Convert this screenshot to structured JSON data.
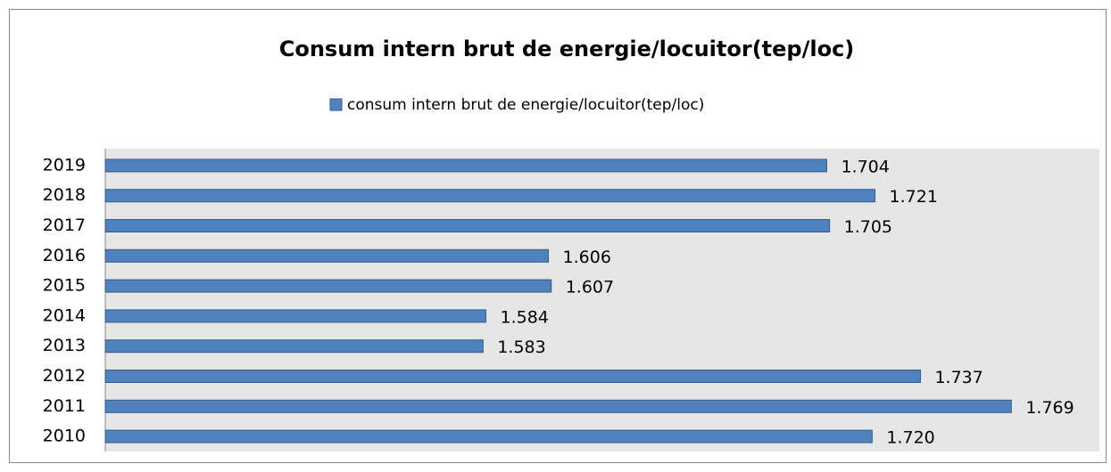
{
  "chart_data": {
    "type": "bar",
    "orientation": "horizontal",
    "title": "Consum intern brut de energie/locuitor(tep/loc)",
    "categories": [
      "2010",
      "2011",
      "2012",
      "2013",
      "2014",
      "2015",
      "2016",
      "2017",
      "2018",
      "2019"
    ],
    "series": [
      {
        "name": "consum intern brut de energie/locuitor(tep/loc)",
        "color": "#4f81bd",
        "values": [
          1.72,
          1.769,
          1.737,
          1.583,
          1.584,
          1.607,
          1.606,
          1.705,
          1.721,
          1.704
        ],
        "value_labels": [
          "1.720",
          "1.769",
          "1.737",
          "1.583",
          "1.584",
          "1.607",
          "1.606",
          "1.705",
          "1.721",
          "1.704"
        ]
      }
    ],
    "xlim": [
      1.45,
      1.8
    ],
    "legend": "top"
  }
}
